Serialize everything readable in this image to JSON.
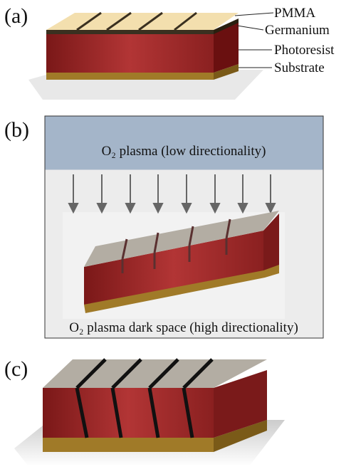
{
  "panel_a": {
    "label": "(a)",
    "layers": [
      "PMMA",
      "Germanium",
      "Photoresist",
      "Substrate"
    ]
  },
  "panel_b": {
    "label": "(b)",
    "top_text": "O₂ plasma (low directionality)",
    "bottom_text": "O₂ plasma dark space (high directionality)"
  },
  "panel_c": {
    "label": "(c)"
  }
}
